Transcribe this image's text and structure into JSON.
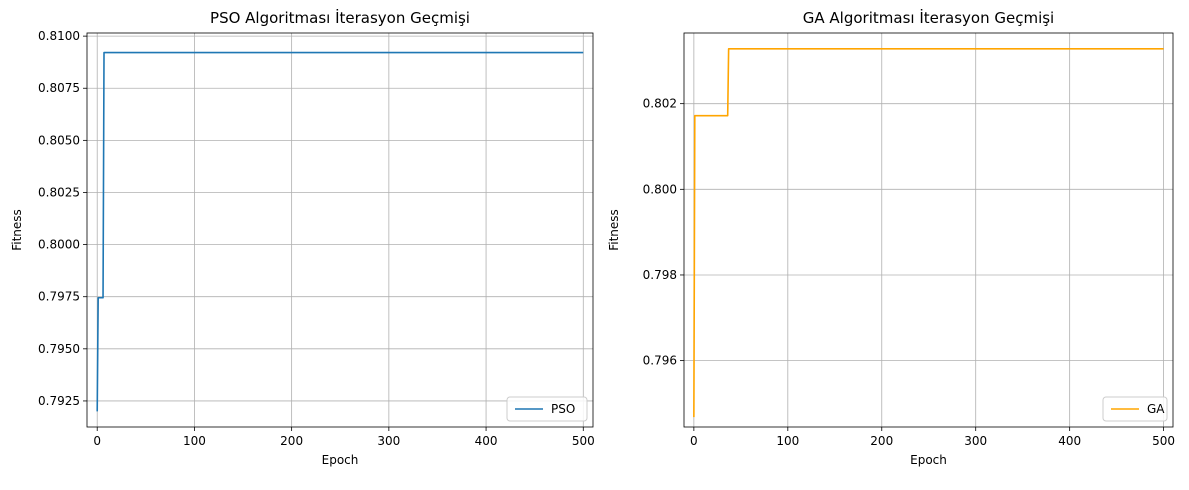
{
  "chart_data": [
    {
      "type": "line",
      "title": "PSO Algoritması İterasyon Geçmişi",
      "xlabel": "Epoch",
      "ylabel": "Fitness",
      "xlim": [
        -10.5,
        510
      ],
      "ylim": [
        0.79125,
        0.81015
      ],
      "xticks": [
        0,
        100,
        200,
        300,
        400,
        500
      ],
      "xtick_labels": [
        "0",
        "100",
        "200",
        "300",
        "400",
        "500"
      ],
      "yticks": [
        0.7925,
        0.795,
        0.7975,
        0.8,
        0.8025,
        0.805,
        0.8075,
        0.81
      ],
      "ytick_labels": [
        "0.7925",
        "0.7950",
        "0.7975",
        "0.8000",
        "0.8025",
        "0.8050",
        "0.8075",
        "0.8100"
      ],
      "grid": true,
      "legend": "lower-right",
      "series": [
        {
          "name": "PSO",
          "color": "#1f77b4",
          "x": [
            0,
            1,
            6,
            7,
            500
          ],
          "y": [
            0.792,
            0.79745,
            0.79745,
            0.80921,
            0.80921
          ]
        }
      ]
    },
    {
      "type": "line",
      "title": "GA Algoritması İterasyon Geçmişi",
      "xlabel": "Epoch",
      "ylabel": "Fitness",
      "xlim": [
        -10.5,
        510
      ],
      "ylim": [
        0.79445,
        0.80365
      ],
      "xticks": [
        0,
        100,
        200,
        300,
        400,
        500
      ],
      "xtick_labels": [
        "0",
        "100",
        "200",
        "300",
        "400",
        "500"
      ],
      "yticks": [
        0.796,
        0.798,
        0.8,
        0.802
      ],
      "ytick_labels": [
        "0.796",
        "0.798",
        "0.800",
        "0.802"
      ],
      "grid": true,
      "legend": "lower-right",
      "series": [
        {
          "name": "GA",
          "color": "#ffa500",
          "x": [
            0,
            1,
            36,
            37,
            500
          ],
          "y": [
            0.79468,
            0.80172,
            0.80172,
            0.80328,
            0.80328
          ]
        }
      ]
    }
  ]
}
